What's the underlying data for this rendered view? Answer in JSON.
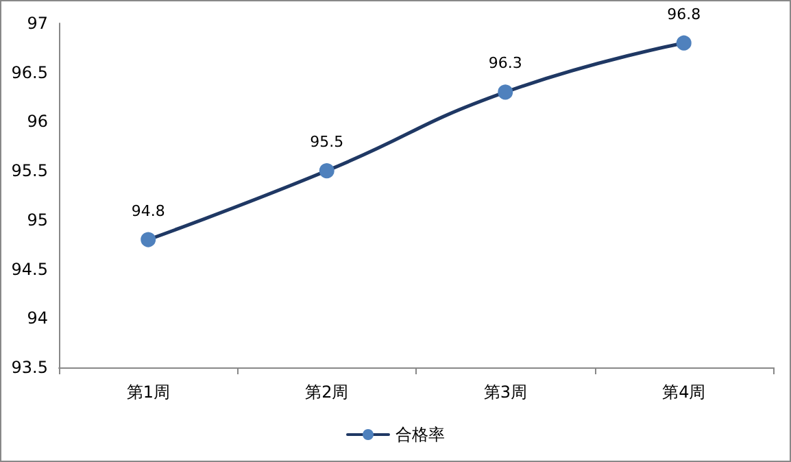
{
  "chart_data": {
    "type": "line",
    "categories": [
      "第1周",
      "第2周",
      "第3周",
      "第4周"
    ],
    "series": [
      {
        "name": "合格率",
        "color": "#1f3864",
        "values": [
          94.8,
          95.5,
          96.3,
          96.8
        ]
      }
    ],
    "ylim": [
      93.5,
      97
    ],
    "yticks": [
      93.5,
      94,
      94.5,
      95,
      95.5,
      96,
      96.5,
      97
    ],
    "grid": false,
    "legend": "bottom",
    "marker": "circle",
    "line_style": "solid",
    "data_labels": true
  }
}
